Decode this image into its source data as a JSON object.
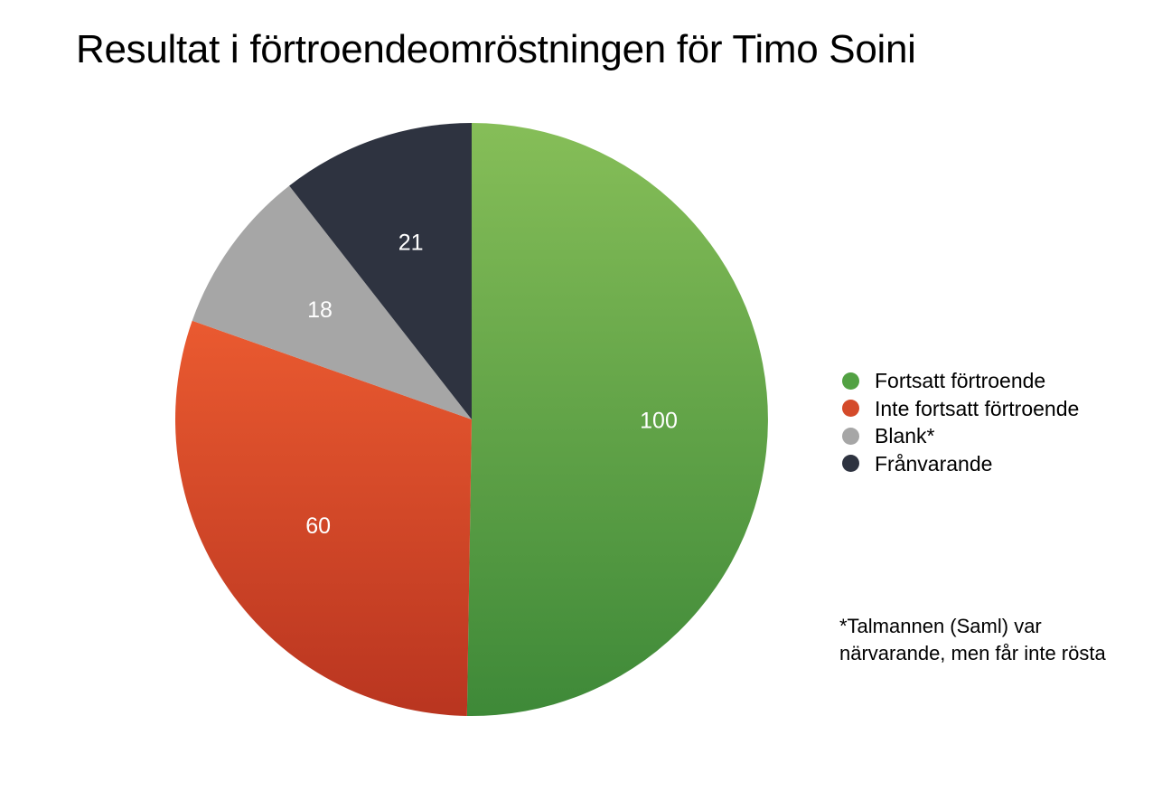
{
  "chart_data": {
    "type": "pie",
    "title": "Resultat i förtroendeomröstningen för Timo Soini",
    "categories": [
      "Fortsatt förtroende",
      "Inte fortsatt förtroende",
      "Blank*",
      "Frånvarande"
    ],
    "values": [
      100,
      60,
      18,
      21
    ],
    "data_labels": [
      "100",
      "60",
      "18",
      "21"
    ],
    "colors": [
      "#52a143",
      "#d44a2a",
      "#a6a6a6",
      "#2e3340"
    ],
    "gradients": [
      [
        "#86be58",
        "#3e8938"
      ],
      [
        "#ea5a30",
        "#b93520"
      ],
      [
        "#a6a6a6",
        "#a6a6a6"
      ],
      [
        "#2e3340",
        "#2e3340"
      ]
    ],
    "start_angle_deg": 0,
    "direction": "clockwise",
    "legend_position": "right",
    "footnote": "*Talmannen (Saml) var närvarande, men får inte rösta"
  }
}
